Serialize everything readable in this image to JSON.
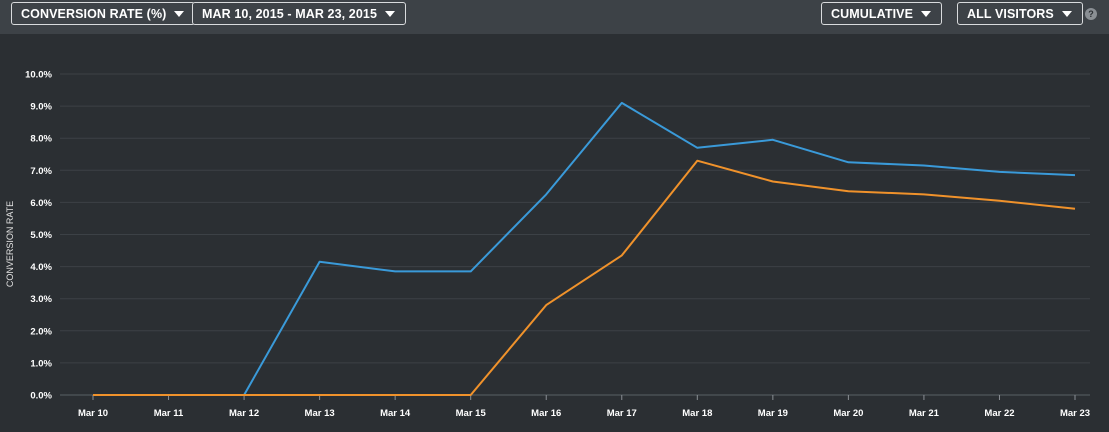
{
  "toolbar": {
    "metric_label": "CONVERSION RATE (%)",
    "date_range_label": "MAR 10, 2015 - MAR 23, 2015",
    "mode_label": "CUMULATIVE",
    "segment_label": "ALL VISITORS",
    "help_glyph": "?"
  },
  "chart_data": {
    "type": "line",
    "ylabel": "CONVERSION RATE",
    "ylim": [
      0,
      10
    ],
    "y_ticks": [
      "0.0%",
      "1.0%",
      "2.0%",
      "3.0%",
      "4.0%",
      "5.0%",
      "6.0%",
      "7.0%",
      "8.0%",
      "9.0%",
      "10.0%"
    ],
    "categories": [
      "Mar 10",
      "Mar 11",
      "Mar 12",
      "Mar 13",
      "Mar 14",
      "Mar 15",
      "Mar 16",
      "Mar 17",
      "Mar 18",
      "Mar 19",
      "Mar 20",
      "Mar 21",
      "Mar 22",
      "Mar 23"
    ],
    "grid": true,
    "series": [
      {
        "color": "#3a9ad9",
        "values": [
          0,
          0,
          0,
          4.15,
          3.85,
          3.85,
          6.25,
          9.1,
          7.7,
          7.95,
          7.25,
          7.15,
          6.95,
          6.85
        ]
      },
      {
        "color": "#f0922b",
        "values": [
          0,
          0,
          0,
          0,
          0,
          0,
          2.8,
          4.35,
          7.3,
          6.65,
          6.35,
          6.25,
          6.05,
          5.8
        ]
      }
    ]
  }
}
